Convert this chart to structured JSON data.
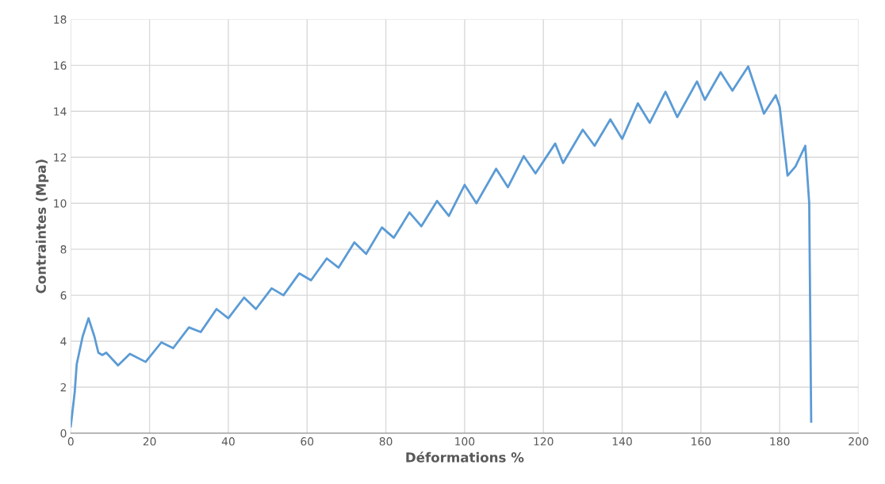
{
  "chart_data": {
    "type": "line",
    "xlabel": "Déformations %",
    "ylabel": "Contraintes (Mpa)",
    "xlim": [
      0,
      200
    ],
    "xticks": [
      0,
      20,
      40,
      60,
      80,
      100,
      120,
      140,
      160,
      180,
      200
    ],
    "ylim": [
      0,
      18
    ],
    "yticks": [
      0,
      2,
      4,
      6,
      8,
      10,
      12,
      14,
      16,
      18
    ],
    "grid": true,
    "series": [
      {
        "color": "#5b9bd5",
        "x": [
          0,
          1,
          1.5,
          3,
          4.5,
          6,
          7,
          8,
          9,
          12,
          15,
          19,
          23,
          26,
          30,
          33,
          37,
          40,
          44,
          47,
          51,
          54,
          58,
          61,
          65,
          68,
          72,
          75,
          79,
          82,
          86,
          89,
          93,
          96,
          100,
          103,
          108,
          111,
          115,
          118,
          123,
          125,
          130,
          133,
          137,
          140,
          144,
          147,
          151,
          154,
          159,
          161,
          165,
          168,
          172,
          176,
          179,
          180,
          182,
          184,
          186.5,
          187.5,
          188
        ],
        "values": [
          0.3,
          1.8,
          3.0,
          4.2,
          5.0,
          4.2,
          3.5,
          3.4,
          3.5,
          2.95,
          3.45,
          3.1,
          3.95,
          3.7,
          4.6,
          4.4,
          5.4,
          5.0,
          5.9,
          5.4,
          6.3,
          6.0,
          6.95,
          6.65,
          7.6,
          7.2,
          8.3,
          7.8,
          8.95,
          8.5,
          9.6,
          9.0,
          10.1,
          9.45,
          10.8,
          10.0,
          11.5,
          10.7,
          12.05,
          11.3,
          12.6,
          11.75,
          13.2,
          12.5,
          13.65,
          12.8,
          14.35,
          13.5,
          14.85,
          13.75,
          15.3,
          14.5,
          15.7,
          14.9,
          15.95,
          13.9,
          14.7,
          14.2,
          11.2,
          11.6,
          12.5,
          10.0,
          0.5
        ]
      }
    ]
  }
}
